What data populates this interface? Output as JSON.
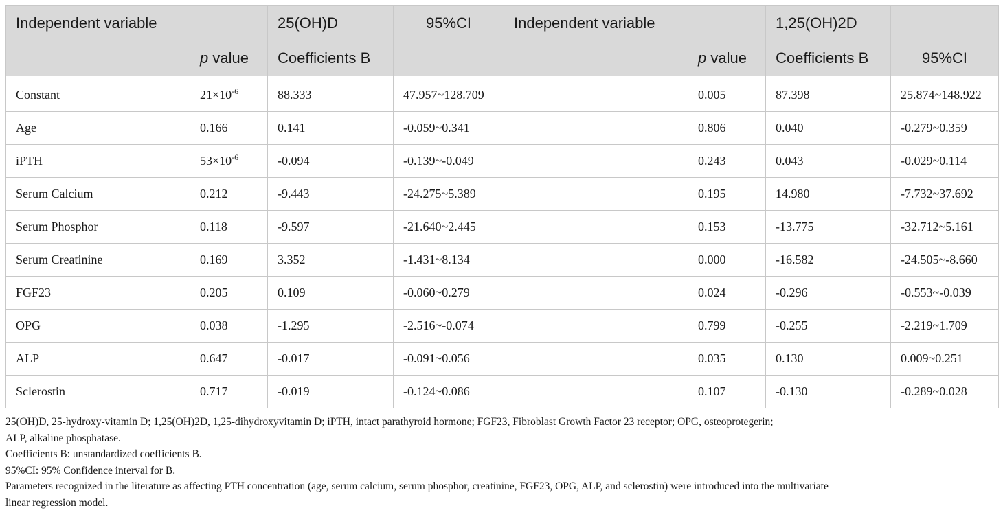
{
  "header": {
    "row1": {
      "independent_variable_left": "Independent variable",
      "group_left": "25(OH)D",
      "ci_left": "95%CI",
      "independent_variable_right": "Independent variable",
      "group_right": "1,25(OH)2D"
    },
    "row2": {
      "p_symbol": "p",
      "value_word": "value",
      "coefficients": "Coefficients B",
      "ci_right": "95%CI"
    }
  },
  "rows": [
    {
      "variable": "Constant",
      "p1_base": "21×10",
      "p1_exp": "-6",
      "b1": "88.333",
      "ci1": "47.957~128.709",
      "p2": "0.005",
      "b2": "87.398",
      "ci2": "25.874~148.922"
    },
    {
      "variable": "Age",
      "p1_base": "0.166",
      "p1_exp": "",
      "b1": "0.141",
      "ci1": "-0.059~0.341",
      "p2": "0.806",
      "b2": "0.040",
      "ci2": "-0.279~0.359"
    },
    {
      "variable": "iPTH",
      "p1_base": "53×10",
      "p1_exp": "-6",
      "b1": "-0.094",
      "ci1": "-0.139~-0.049",
      "p2": "0.243",
      "b2": "0.043",
      "ci2": "-0.029~0.114"
    },
    {
      "variable": "Serum Calcium",
      "p1_base": "0.212",
      "p1_exp": "",
      "b1": "-9.443",
      "ci1": "-24.275~5.389",
      "p2": "0.195",
      "b2": "14.980",
      "ci2": "-7.732~37.692"
    },
    {
      "variable": "Serum Phosphor",
      "p1_base": "0.118",
      "p1_exp": "",
      "b1": "-9.597",
      "ci1": "-21.640~2.445",
      "p2": "0.153",
      "b2": "-13.775",
      "ci2": "-32.712~5.161"
    },
    {
      "variable": "Serum Creatinine",
      "p1_base": "0.169",
      "p1_exp": "",
      "b1": "3.352",
      "ci1": "-1.431~8.134",
      "p2": "0.000",
      "b2": "-16.582",
      "ci2": "-24.505~-8.660"
    },
    {
      "variable": "FGF23",
      "p1_base": "0.205",
      "p1_exp": "",
      "b1": "0.109",
      "ci1": "-0.060~0.279",
      "p2": "0.024",
      "b2": "-0.296",
      "ci2": "-0.553~-0.039"
    },
    {
      "variable": "OPG",
      "p1_base": "0.038",
      "p1_exp": "",
      "b1": "-1.295",
      "ci1": "-2.516~-0.074",
      "p2": "0.799",
      "b2": "-0.255",
      "ci2": "-2.219~1.709"
    },
    {
      "variable": "ALP",
      "p1_base": "0.647",
      "p1_exp": "",
      "b1": "-0.017",
      "ci1": "-0.091~0.056",
      "p2": "0.035",
      "b2": "0.130",
      "ci2": "0.009~0.251"
    },
    {
      "variable": "Sclerostin",
      "p1_base": "0.717",
      "p1_exp": "",
      "b1": "-0.019",
      "ci1": "-0.124~0.086",
      "p2": "0.107",
      "b2": "-0.130",
      "ci2": "-0.289~0.028"
    }
  ],
  "notes": {
    "abbreviations_line1": "25(OH)D, 25-hydroxy-vitamin D; 1,25(OH)2D, 1,25-dihydroxyvitamin D; iPTH, intact parathyroid hormone; FGF23, Fibroblast Growth Factor 23 receptor; OPG, osteoprotegerin;",
    "abbreviations_line2": "ALP, alkaline phosphatase.",
    "coefficients_note": "Coefficients B: unstandardized coefficients B.",
    "ci_note": "95%CI: 95% Confidence interval for B.",
    "parameters_line1": "Parameters recognized in the literature as affecting PTH concentration (age, serum calcium, serum phosphor, creatinine, FGF23, OPG, ALP, and sclerostin) were introduced into the multivariate",
    "parameters_line2": "linear regression model."
  },
  "colors": {
    "header_background": "#d9d9d9",
    "border": "#c8c8c8",
    "text": "#1a1a1a"
  }
}
